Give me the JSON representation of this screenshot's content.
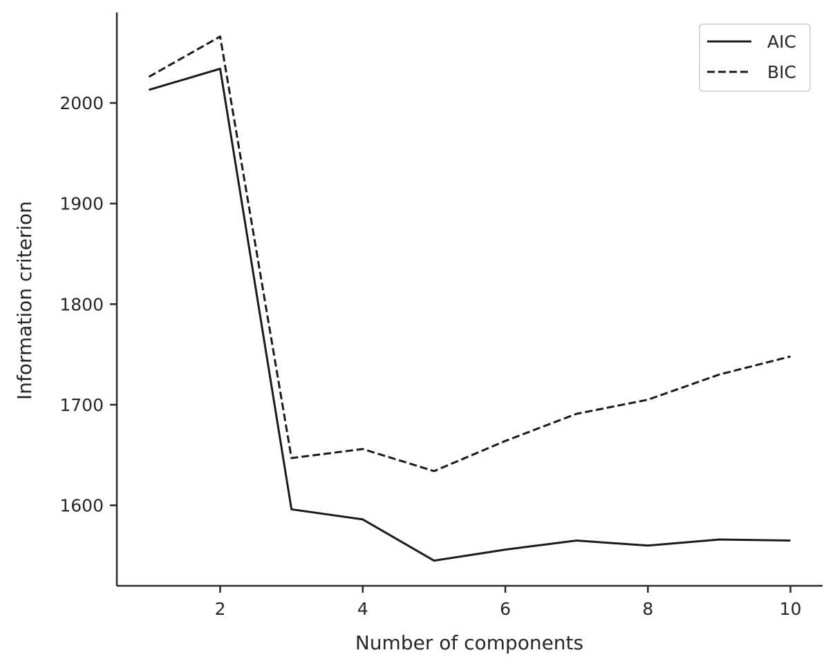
{
  "chart_data": {
    "type": "line",
    "xlabel": "Number of components",
    "ylabel": "Information criterion",
    "xlim": [
      0.55,
      10.45
    ],
    "ylim": [
      1520,
      2090
    ],
    "xticks": [
      2,
      4,
      6,
      8,
      10
    ],
    "yticks": [
      1600,
      1700,
      1800,
      1900,
      2000
    ],
    "x": [
      1,
      2,
      3,
      4,
      5,
      6,
      7,
      8,
      9,
      10
    ],
    "series": [
      {
        "name": "AIC",
        "style": "solid",
        "color": "#1a1a1a",
        "values": [
          2013,
          2034,
          1596,
          1586,
          1545,
          1556,
          1565,
          1560,
          1566,
          1565
        ]
      },
      {
        "name": "BIC",
        "style": "dashed",
        "color": "#1a1a1a",
        "values": [
          2026,
          2066,
          1647,
          1656,
          1634,
          1664,
          1691,
          1705,
          1730,
          1748
        ]
      }
    ],
    "legend_position": "top-right",
    "grid": false
  }
}
